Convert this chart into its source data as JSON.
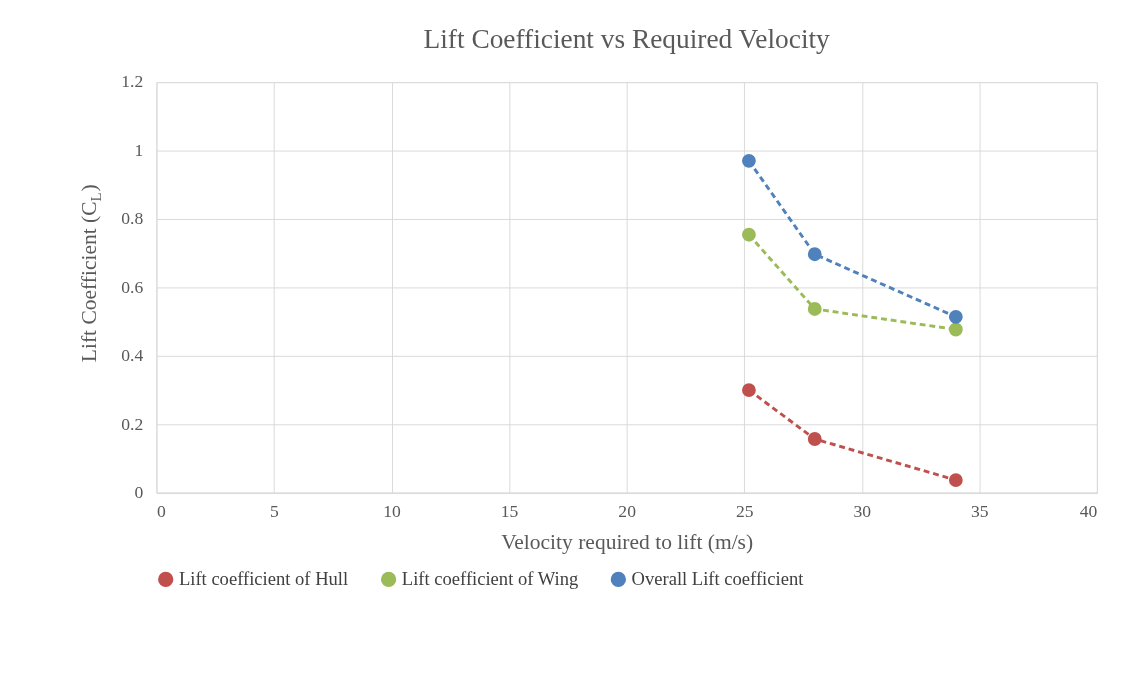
{
  "chart_data": {
    "type": "line",
    "title": "Lift Coefficient vs Required Velocity",
    "xlabel": "Velocity required to lift (m/s)",
    "ylabel": "Lift Coefficient (C$_{L}$)",
    "x": [
      25.2,
      28.0,
      34.0
    ],
    "series": [
      {
        "name": "Lift coefficient of Hull",
        "color": "#c0504d",
        "values": [
          0.3,
          0.157,
          0.037
        ]
      },
      {
        "name": "Lift coefficient of Wing",
        "color": "#9bbb59",
        "values": [
          0.754,
          0.537,
          0.477
        ]
      },
      {
        "name": "Overall Lift coefficient",
        "color": "#4f81bd",
        "values": [
          0.97,
          0.697,
          0.514
        ]
      }
    ],
    "xlim": [
      0,
      40
    ],
    "xticks": [
      0,
      5,
      10,
      15,
      20,
      25,
      30,
      35,
      40
    ],
    "ylim": [
      0,
      1.2
    ],
    "yticks": [
      0,
      0.2,
      0.4,
      0.6,
      0.8,
      1,
      1.2
    ],
    "grid": true,
    "legend": "bottom",
    "marker": "circle",
    "line_style": "dashed"
  }
}
